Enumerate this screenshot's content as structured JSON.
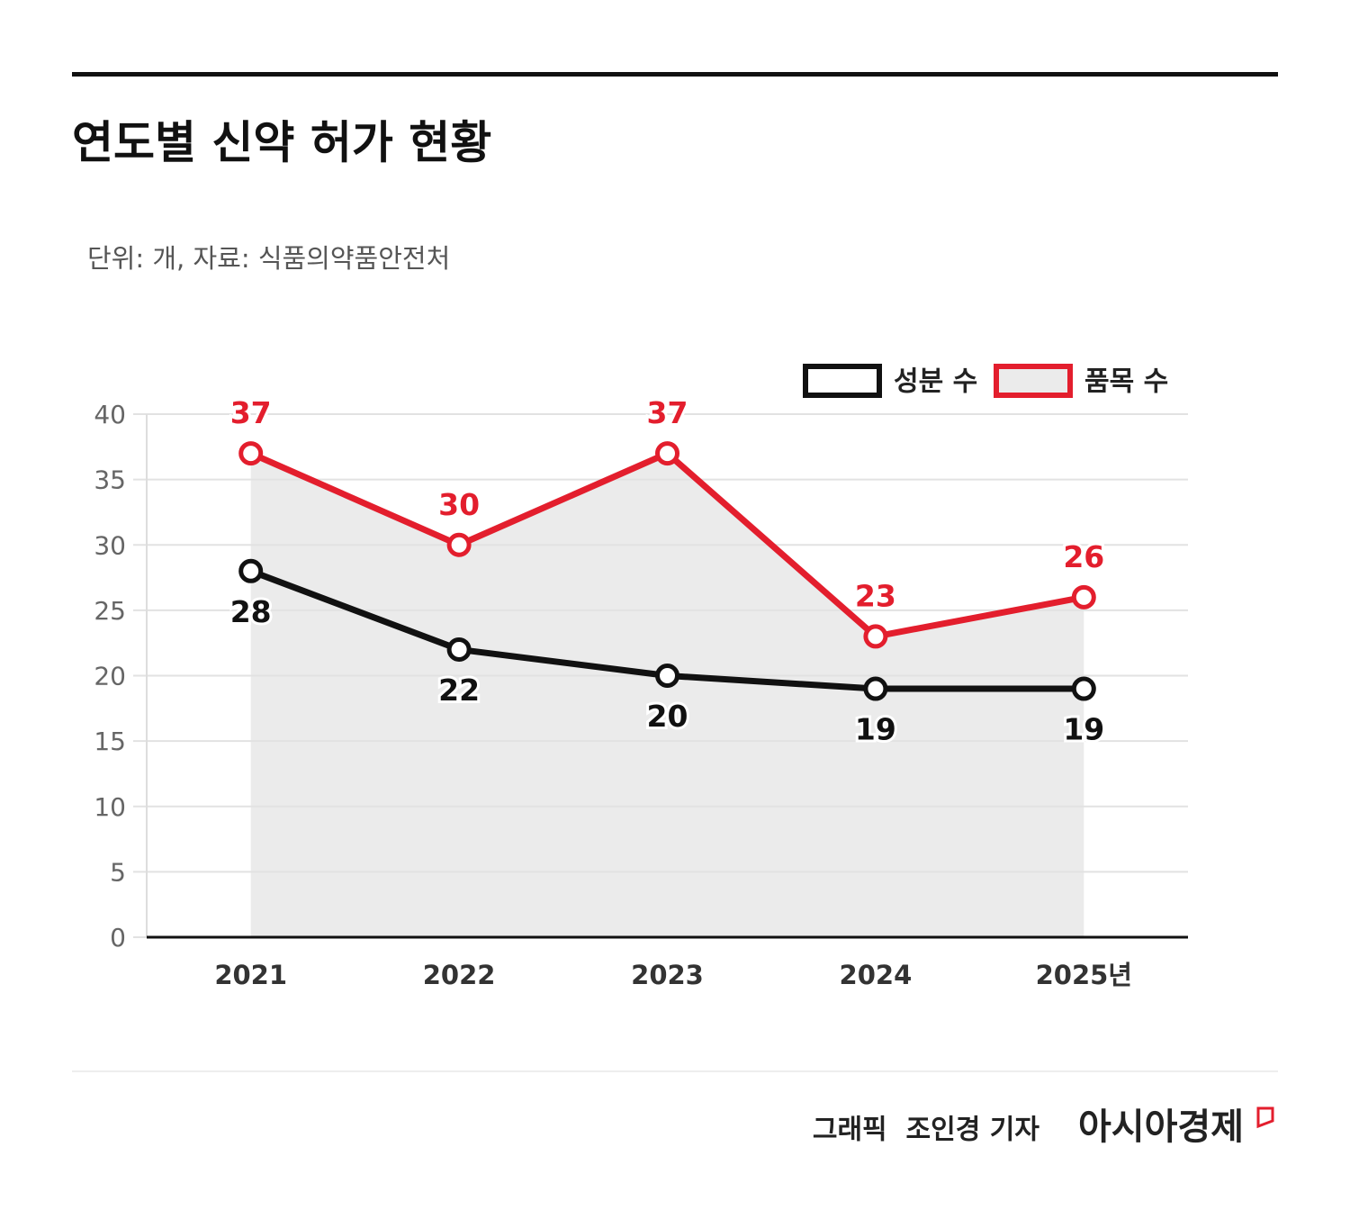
{
  "chart_data": {
    "type": "line",
    "title": "연도별 신약 허가 현황",
    "subtitle": "단위: 개, 자료: 식품의약품안전처",
    "categories": [
      "2021",
      "2022",
      "2023",
      "2024",
      "2025년"
    ],
    "series": [
      {
        "name": "성분 수",
        "color": "#111111",
        "values": [
          28,
          22,
          20,
          19,
          19
        ]
      },
      {
        "name": "품목 수",
        "color": "#e31e2d",
        "values": [
          37,
          30,
          37,
          23,
          26
        ],
        "area_color": "#ebebeb"
      }
    ],
    "ylim": [
      0,
      40
    ],
    "yticks": [
      0,
      5,
      10,
      15,
      20,
      25,
      30,
      35,
      40
    ],
    "grid": true,
    "credit": "그래픽  조인경 기자",
    "brand": "아시아경제"
  }
}
